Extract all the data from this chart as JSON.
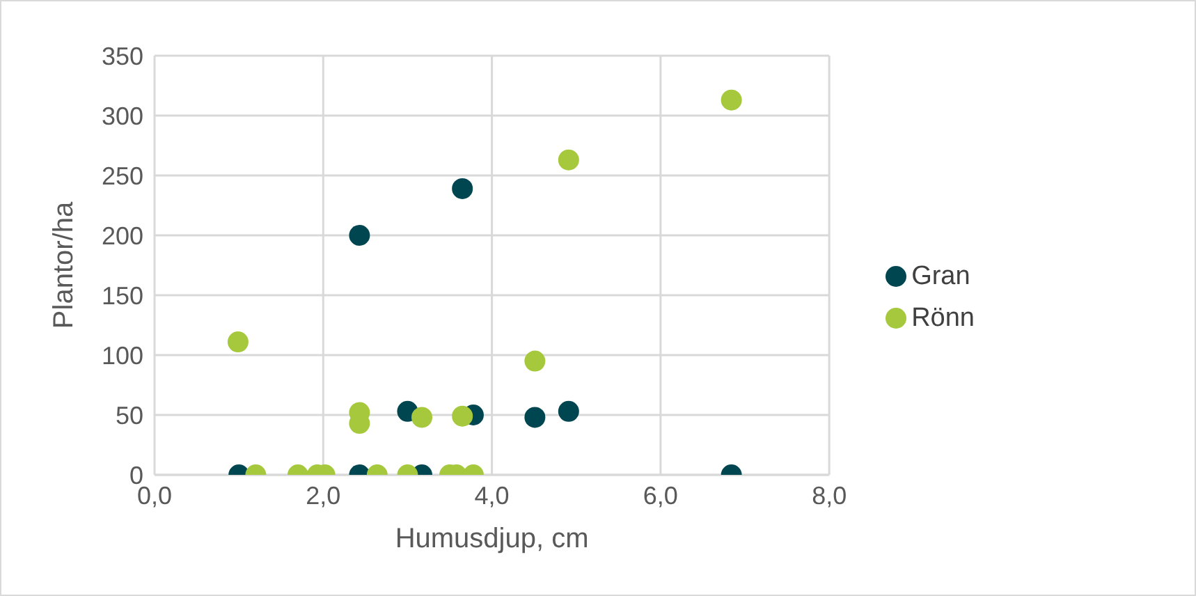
{
  "chart_data": {
    "type": "scatter",
    "xlabel": "Humusdjup, cm",
    "ylabel": "Plantor/ha",
    "xlim": [
      0,
      8
    ],
    "xticks": [
      {
        "value": 0,
        "label": "0,0"
      },
      {
        "value": 2,
        "label": "2,0"
      },
      {
        "value": 4,
        "label": "4,0"
      },
      {
        "value": 6,
        "label": "6,0"
      },
      {
        "value": 8,
        "label": "8,0"
      }
    ],
    "ylim": [
      0,
      350
    ],
    "yticks": [
      0,
      50,
      100,
      150,
      200,
      250,
      300,
      350
    ],
    "grid": true,
    "legend": "right",
    "marker": "circle",
    "series": [
      {
        "name": "Gran",
        "color": "#004650",
        "x": [
          1.0,
          2.43,
          3.65,
          3.0,
          3.78,
          2.43,
          3.17,
          4.51,
          4.91,
          6.84
        ],
        "values": [
          0,
          200,
          239,
          53,
          50,
          0,
          0,
          48,
          53,
          0
        ]
      },
      {
        "name": "Rönn",
        "color": "#a5c83c",
        "x": [
          0.99,
          1.2,
          1.7,
          1.93,
          2.02,
          2.64,
          3.0,
          3.5,
          3.58,
          3.78,
          2.43,
          2.43,
          3.17,
          3.65,
          4.51,
          4.91,
          6.84
        ],
        "values": [
          111,
          0,
          0,
          0,
          0,
          0,
          0,
          0,
          0,
          0,
          52,
          43,
          48,
          49,
          95,
          263,
          313
        ]
      }
    ]
  }
}
